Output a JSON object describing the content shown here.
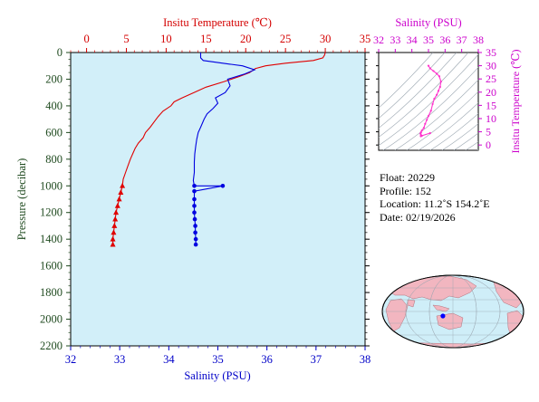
{
  "chart_data": [
    {
      "type": "line",
      "id": "profile",
      "axes": {
        "temperature": {
          "label": "Insitu Temperature (℃)",
          "range": [
            -2,
            35
          ],
          "ticks": [
            "0",
            "5",
            "10",
            "15",
            "20",
            "25",
            "30",
            "35"
          ],
          "color": "#d40000",
          "position": "top"
        },
        "salinity": {
          "label": "Salinity (PSU)",
          "range": [
            32,
            38
          ],
          "ticks": [
            "32",
            "33",
            "34",
            "35",
            "36",
            "37",
            "38"
          ],
          "color": "#0000c8",
          "position": "bottom"
        },
        "pressure": {
          "label": "Pressure (decibar)",
          "range": [
            0,
            2200
          ],
          "inverted": true,
          "ticks": [
            "0",
            "200",
            "400",
            "600",
            "800",
            "1000",
            "1200",
            "1400",
            "1600",
            "1800",
            "2000",
            "2200"
          ],
          "color": "#1f4a1f",
          "position": "left"
        }
      },
      "series": [
        {
          "variable": "temperature",
          "color": "#e00000",
          "marker": "triangle",
          "points": [
            [
              30.0,
              0
            ],
            [
              29.9,
              20
            ],
            [
              29.7,
              40
            ],
            [
              28.5,
              60
            ],
            [
              25.0,
              80
            ],
            [
              22.5,
              100
            ],
            [
              21.2,
              120
            ],
            [
              20.5,
              150
            ],
            [
              19.2,
              180
            ],
            [
              17.2,
              220
            ],
            [
              15.0,
              260
            ],
            [
              13.5,
              300
            ],
            [
              12.0,
              340
            ],
            [
              11.0,
              370
            ],
            [
              10.6,
              400
            ],
            [
              9.6,
              440
            ],
            [
              9.0,
              480
            ],
            [
              8.5,
              520
            ],
            [
              8.0,
              560
            ],
            [
              7.4,
              600
            ],
            [
              7.1,
              640
            ],
            [
              6.5,
              680
            ],
            [
              6.1,
              720
            ],
            [
              5.8,
              760
            ],
            [
              5.5,
              800
            ],
            [
              5.2,
              850
            ],
            [
              4.9,
              900
            ],
            [
              4.6,
              950
            ],
            [
              4.5,
              1000
            ],
            [
              4.3,
              1050
            ],
            [
              4.1,
              1100
            ],
            [
              3.9,
              1150
            ],
            [
              3.7,
              1200
            ],
            [
              3.6,
              1250
            ],
            [
              3.5,
              1300
            ],
            [
              3.4,
              1350
            ],
            [
              3.3,
              1400
            ],
            [
              3.3,
              1440
            ]
          ],
          "markers_at": [
            1000,
            1050,
            1100,
            1150,
            1200,
            1250,
            1300,
            1350,
            1400,
            1440
          ]
        },
        {
          "variable": "salinity",
          "color": "#0000e0",
          "marker": "circle",
          "points": [
            [
              34.65,
              0
            ],
            [
              34.65,
              40
            ],
            [
              34.7,
              60
            ],
            [
              35.1,
              80
            ],
            [
              35.5,
              100
            ],
            [
              35.75,
              130
            ],
            [
              35.55,
              160
            ],
            [
              35.2,
              200
            ],
            [
              35.25,
              250
            ],
            [
              35.15,
              300
            ],
            [
              34.95,
              340
            ],
            [
              35.0,
              380
            ],
            [
              34.9,
              420
            ],
            [
              34.78,
              460
            ],
            [
              34.72,
              500
            ],
            [
              34.65,
              560
            ],
            [
              34.6,
              600
            ],
            [
              34.57,
              650
            ],
            [
              34.55,
              700
            ],
            [
              34.53,
              760
            ],
            [
              34.52,
              820
            ],
            [
              34.52,
              900
            ],
            [
              34.5,
              960
            ],
            [
              34.52,
              1000
            ],
            [
              35.1,
              1000
            ],
            [
              34.52,
              1040
            ],
            [
              34.52,
              1100
            ],
            [
              34.52,
              1150
            ],
            [
              34.52,
              1200
            ],
            [
              34.53,
              1250
            ],
            [
              34.54,
              1300
            ],
            [
              34.54,
              1350
            ],
            [
              34.55,
              1400
            ],
            [
              34.55,
              1440
            ]
          ],
          "markers_at": [
            1000,
            1040,
            1100,
            1150,
            1200,
            1250,
            1300,
            1350,
            1400,
            1440
          ]
        }
      ]
    },
    {
      "type": "scatter",
      "id": "ts-diagram",
      "title": "",
      "axes": {
        "salinity": {
          "label": "Salinity (PSU)",
          "range": [
            32,
            38
          ],
          "ticks": [
            "32",
            "33",
            "34",
            "35",
            "36",
            "37",
            "38"
          ],
          "color": "#cc00cc",
          "position": "top"
        },
        "temperature": {
          "label": "Insitu Temperature (℃)",
          "range": [
            -2,
            35
          ],
          "ticks": [
            "0",
            "5",
            "10",
            "15",
            "20",
            "25",
            "30",
            "35"
          ],
          "color": "#cc00cc",
          "position": "right"
        }
      },
      "contour_color": "#9aa6b0",
      "series": [
        {
          "color": "#ff33cc",
          "points": [
            [
              35.0,
              30.0
            ],
            [
              35.1,
              29.0
            ],
            [
              35.3,
              28.0
            ],
            [
              35.5,
              27.0
            ],
            [
              35.65,
              26.0
            ],
            [
              35.75,
              24.0
            ],
            [
              35.7,
              22.0
            ],
            [
              35.6,
              20.5
            ],
            [
              35.5,
              19.0
            ],
            [
              35.35,
              17.5
            ],
            [
              35.25,
              15.5
            ],
            [
              35.15,
              13.0
            ],
            [
              35.0,
              11.0
            ],
            [
              34.9,
              9.5
            ],
            [
              34.8,
              8.0
            ],
            [
              34.72,
              6.5
            ],
            [
              34.6,
              5.5
            ],
            [
              34.55,
              4.8
            ],
            [
              34.52,
              4.3
            ],
            [
              34.55,
              3.8
            ],
            [
              34.6,
              3.5
            ],
            [
              35.1,
              4.5
            ],
            [
              34.55,
              3.4
            ],
            [
              34.54,
              3.3
            ]
          ]
        }
      ]
    }
  ],
  "float_info": {
    "float": "Float:  20229",
    "profile": "Profile:  152",
    "location": "Location:  11.2˚S  154.2˚E",
    "date": "Date:  02/19/2026"
  },
  "map": {
    "projection": "world-map",
    "ocean_color": "#cfeef8",
    "land_color": "#f2b6c0",
    "marker_color": "#0000ff",
    "marker_lonlat": [
      154.2,
      -11.2
    ]
  },
  "colors": {
    "plot_bg": "#d2eff9"
  }
}
